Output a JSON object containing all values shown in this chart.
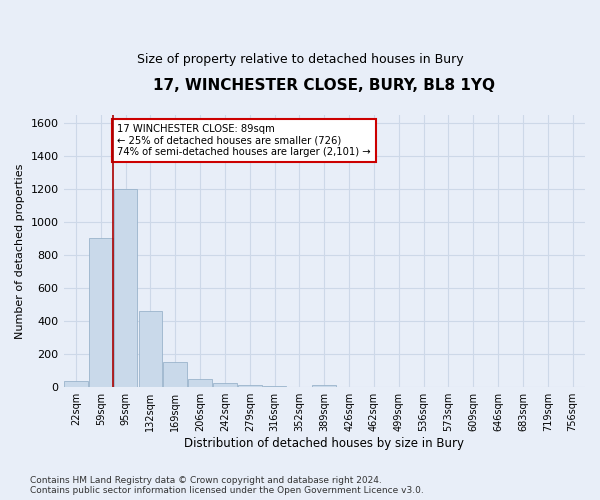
{
  "title": "17, WINCHESTER CLOSE, BURY, BL8 1YQ",
  "subtitle": "Size of property relative to detached houses in Bury",
  "xlabel": "Distribution of detached houses by size in Bury",
  "ylabel": "Number of detached properties",
  "footnote": "Contains HM Land Registry data © Crown copyright and database right 2024.\nContains public sector information licensed under the Open Government Licence v3.0.",
  "categories": [
    "22sqm",
    "59sqm",
    "95sqm",
    "132sqm",
    "169sqm",
    "206sqm",
    "242sqm",
    "279sqm",
    "316sqm",
    "352sqm",
    "389sqm",
    "426sqm",
    "462sqm",
    "499sqm",
    "536sqm",
    "573sqm",
    "609sqm",
    "646sqm",
    "683sqm",
    "719sqm",
    "756sqm"
  ],
  "values": [
    40,
    900,
    1200,
    460,
    150,
    50,
    25,
    15,
    10,
    0,
    15,
    0,
    0,
    0,
    0,
    0,
    0,
    0,
    0,
    0,
    0
  ],
  "bar_color": "#c9d9ea",
  "bar_edge_color": "#9ab4cc",
  "grid_color": "#cdd8e8",
  "background_color": "#e8eef8",
  "ylim": [
    0,
    1650
  ],
  "yticks": [
    0,
    200,
    400,
    600,
    800,
    1000,
    1200,
    1400,
    1600
  ],
  "vline_x": 1.5,
  "vline_color": "#aa0000",
  "annotation_text": "17 WINCHESTER CLOSE: 89sqm\n← 25% of detached houses are smaller (726)\n74% of semi-detached houses are larger (2,101) →",
  "annotation_box_color": "#ffffff",
  "annotation_border_color": "#cc0000",
  "title_fontsize": 11,
  "subtitle_fontsize": 9,
  "footnote_fontsize": 6.5
}
